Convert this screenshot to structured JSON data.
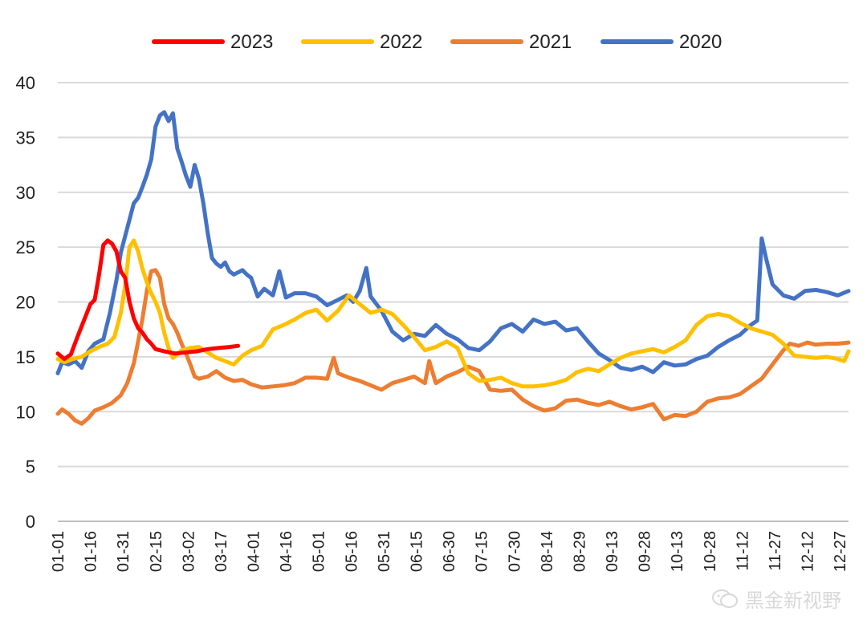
{
  "chart_data": {
    "type": "line",
    "title": "",
    "xlabel": "",
    "ylabel": "",
    "ylim": [
      0,
      40
    ],
    "yticks": [
      0,
      5,
      10,
      15,
      20,
      25,
      30,
      35,
      40
    ],
    "grid": "horizontal",
    "legend_position": "top",
    "x_ticks": [
      "01-01",
      "01-16",
      "01-31",
      "02-15",
      "03-02",
      "03-17",
      "04-01",
      "04-16",
      "05-01",
      "05-16",
      "05-31",
      "06-15",
      "06-30",
      "07-15",
      "07-30",
      "08-14",
      "08-29",
      "09-13",
      "09-28",
      "10-13",
      "10-28",
      "11-12",
      "11-27",
      "12-12",
      "12-27"
    ],
    "x_unit": "day_of_year",
    "series": [
      {
        "name": "2023",
        "color": "#ff0000",
        "points": [
          [
            1,
            15.3
          ],
          [
            4,
            14.8
          ],
          [
            7,
            15.2
          ],
          [
            10,
            16.8
          ],
          [
            13,
            18.3
          ],
          [
            16,
            19.8
          ],
          [
            18,
            20.2
          ],
          [
            20,
            22.5
          ],
          [
            22,
            25.2
          ],
          [
            24,
            25.6
          ],
          [
            26,
            25.3
          ],
          [
            28,
            24.6
          ],
          [
            30,
            22.8
          ],
          [
            32,
            22.2
          ],
          [
            34,
            20.0
          ],
          [
            36,
            18.5
          ],
          [
            38,
            17.6
          ],
          [
            40,
            17.2
          ],
          [
            42,
            16.6
          ],
          [
            44,
            16.2
          ],
          [
            46,
            15.7
          ],
          [
            48,
            15.6
          ],
          [
            50,
            15.5
          ],
          [
            55,
            15.3
          ],
          [
            60,
            15.4
          ],
          [
            65,
            15.5
          ],
          [
            70,
            15.7
          ],
          [
            75,
            15.8
          ],
          [
            80,
            15.9
          ],
          [
            84,
            16.0
          ]
        ]
      },
      {
        "name": "2022",
        "color": "#ffc000",
        "points": [
          [
            1,
            14.8
          ],
          [
            4,
            14.5
          ],
          [
            8,
            14.8
          ],
          [
            12,
            15.0
          ],
          [
            16,
            15.5
          ],
          [
            20,
            15.9
          ],
          [
            24,
            16.2
          ],
          [
            27,
            16.8
          ],
          [
            30,
            19.0
          ],
          [
            32,
            21.5
          ],
          [
            34,
            25.0
          ],
          [
            36,
            25.6
          ],
          [
            38,
            24.6
          ],
          [
            40,
            23.0
          ],
          [
            42,
            21.8
          ],
          [
            44,
            20.8
          ],
          [
            46,
            20.0
          ],
          [
            48,
            19.0
          ],
          [
            50,
            17.2
          ],
          [
            52,
            15.8
          ],
          [
            54,
            14.9
          ],
          [
            56,
            15.2
          ],
          [
            58,
            15.6
          ],
          [
            62,
            15.8
          ],
          [
            66,
            15.9
          ],
          [
            70,
            15.4
          ],
          [
            74,
            14.9
          ],
          [
            78,
            14.6
          ],
          [
            82,
            14.3
          ],
          [
            86,
            15.1
          ],
          [
            90,
            15.6
          ],
          [
            95,
            16.0
          ],
          [
            100,
            17.5
          ],
          [
            105,
            17.9
          ],
          [
            110,
            18.4
          ],
          [
            115,
            19.0
          ],
          [
            120,
            19.3
          ],
          [
            125,
            18.3
          ],
          [
            130,
            19.2
          ],
          [
            135,
            20.6
          ],
          [
            140,
            19.8
          ],
          [
            145,
            19.0
          ],
          [
            150,
            19.3
          ],
          [
            155,
            18.9
          ],
          [
            160,
            17.9
          ],
          [
            165,
            16.8
          ],
          [
            170,
            15.6
          ],
          [
            175,
            15.9
          ],
          [
            180,
            16.4
          ],
          [
            185,
            15.8
          ],
          [
            190,
            13.5
          ],
          [
            195,
            12.8
          ],
          [
            200,
            12.9
          ],
          [
            205,
            13.1
          ],
          [
            210,
            12.6
          ],
          [
            215,
            12.3
          ],
          [
            220,
            12.3
          ],
          [
            225,
            12.4
          ],
          [
            230,
            12.6
          ],
          [
            235,
            12.9
          ],
          [
            240,
            13.6
          ],
          [
            245,
            13.9
          ],
          [
            250,
            13.7
          ],
          [
            255,
            14.3
          ],
          [
            260,
            14.9
          ],
          [
            265,
            15.3
          ],
          [
            270,
            15.5
          ],
          [
            275,
            15.7
          ],
          [
            280,
            15.4
          ],
          [
            285,
            15.9
          ],
          [
            290,
            16.5
          ],
          [
            295,
            17.9
          ],
          [
            300,
            18.7
          ],
          [
            305,
            18.9
          ],
          [
            310,
            18.7
          ],
          [
            315,
            18.1
          ],
          [
            320,
            17.6
          ],
          [
            325,
            17.3
          ],
          [
            330,
            17.0
          ],
          [
            335,
            16.2
          ],
          [
            340,
            15.1
          ],
          [
            345,
            15.0
          ],
          [
            350,
            14.9
          ],
          [
            355,
            15.0
          ],
          [
            360,
            14.8
          ],
          [
            363,
            14.6
          ],
          [
            365,
            15.5
          ]
        ]
      },
      {
        "name": "2021",
        "color": "#ed7d31",
        "points": [
          [
            1,
            9.8
          ],
          [
            3,
            10.2
          ],
          [
            6,
            9.8
          ],
          [
            9,
            9.2
          ],
          [
            12,
            8.9
          ],
          [
            15,
            9.4
          ],
          [
            18,
            10.1
          ],
          [
            22,
            10.4
          ],
          [
            26,
            10.8
          ],
          [
            30,
            11.5
          ],
          [
            33,
            12.6
          ],
          [
            36,
            14.4
          ],
          [
            38,
            16.4
          ],
          [
            40,
            18.5
          ],
          [
            42,
            21.0
          ],
          [
            44,
            22.8
          ],
          [
            46,
            22.9
          ],
          [
            48,
            22.2
          ],
          [
            50,
            19.8
          ],
          [
            52,
            18.5
          ],
          [
            54,
            18.0
          ],
          [
            56,
            17.2
          ],
          [
            58,
            16.2
          ],
          [
            60,
            15.3
          ],
          [
            62,
            14.3
          ],
          [
            64,
            13.2
          ],
          [
            66,
            13.0
          ],
          [
            70,
            13.2
          ],
          [
            74,
            13.7
          ],
          [
            78,
            13.1
          ],
          [
            82,
            12.8
          ],
          [
            86,
            12.9
          ],
          [
            90,
            12.5
          ],
          [
            95,
            12.2
          ],
          [
            100,
            12.3
          ],
          [
            105,
            12.4
          ],
          [
            110,
            12.6
          ],
          [
            115,
            13.1
          ],
          [
            120,
            13.1
          ],
          [
            125,
            13.0
          ],
          [
            128,
            14.9
          ],
          [
            130,
            13.5
          ],
          [
            135,
            13.1
          ],
          [
            140,
            12.8
          ],
          [
            145,
            12.4
          ],
          [
            150,
            12.0
          ],
          [
            155,
            12.6
          ],
          [
            160,
            12.9
          ],
          [
            165,
            13.2
          ],
          [
            170,
            12.6
          ],
          [
            172,
            14.6
          ],
          [
            175,
            12.6
          ],
          [
            180,
            13.2
          ],
          [
            185,
            13.6
          ],
          [
            190,
            14.1
          ],
          [
            195,
            13.7
          ],
          [
            200,
            12.0
          ],
          [
            205,
            11.9
          ],
          [
            210,
            12.0
          ],
          [
            215,
            11.1
          ],
          [
            220,
            10.5
          ],
          [
            225,
            10.1
          ],
          [
            230,
            10.3
          ],
          [
            235,
            11.0
          ],
          [
            240,
            11.1
          ],
          [
            245,
            10.8
          ],
          [
            250,
            10.6
          ],
          [
            255,
            10.9
          ],
          [
            260,
            10.5
          ],
          [
            265,
            10.2
          ],
          [
            270,
            10.4
          ],
          [
            275,
            10.7
          ],
          [
            280,
            9.3
          ],
          [
            285,
            9.7
          ],
          [
            290,
            9.6
          ],
          [
            295,
            10.0
          ],
          [
            300,
            10.9
          ],
          [
            305,
            11.2
          ],
          [
            310,
            11.3
          ],
          [
            315,
            11.6
          ],
          [
            320,
            12.3
          ],
          [
            325,
            13.0
          ],
          [
            330,
            14.3
          ],
          [
            335,
            15.6
          ],
          [
            338,
            16.2
          ],
          [
            342,
            16.0
          ],
          [
            346,
            16.3
          ],
          [
            350,
            16.1
          ],
          [
            355,
            16.2
          ],
          [
            360,
            16.2
          ],
          [
            365,
            16.3
          ]
        ]
      },
      {
        "name": "2020",
        "color": "#4472c4",
        "points": [
          [
            1,
            13.5
          ],
          [
            3,
            14.5
          ],
          [
            6,
            14.3
          ],
          [
            9,
            14.6
          ],
          [
            12,
            14.0
          ],
          [
            15,
            15.5
          ],
          [
            18,
            16.2
          ],
          [
            22,
            16.6
          ],
          [
            25,
            19.0
          ],
          [
            28,
            22.0
          ],
          [
            30,
            24.5
          ],
          [
            32,
            26.0
          ],
          [
            34,
            27.5
          ],
          [
            36,
            29.0
          ],
          [
            38,
            29.5
          ],
          [
            40,
            30.5
          ],
          [
            42,
            31.6
          ],
          [
            44,
            33.0
          ],
          [
            46,
            36.0
          ],
          [
            48,
            37.0
          ],
          [
            50,
            37.3
          ],
          [
            52,
            36.5
          ],
          [
            54,
            37.2
          ],
          [
            56,
            34.0
          ],
          [
            58,
            32.8
          ],
          [
            60,
            31.5
          ],
          [
            62,
            30.5
          ],
          [
            64,
            32.5
          ],
          [
            66,
            31.2
          ],
          [
            68,
            29.0
          ],
          [
            70,
            26.3
          ],
          [
            72,
            24.0
          ],
          [
            74,
            23.5
          ],
          [
            76,
            23.2
          ],
          [
            78,
            23.6
          ],
          [
            80,
            22.8
          ],
          [
            82,
            22.5
          ],
          [
            84,
            22.7
          ],
          [
            86,
            22.9
          ],
          [
            88,
            22.5
          ],
          [
            90,
            22.2
          ],
          [
            93,
            20.5
          ],
          [
            96,
            21.2
          ],
          [
            100,
            20.6
          ],
          [
            103,
            22.8
          ],
          [
            106,
            20.4
          ],
          [
            110,
            20.8
          ],
          [
            115,
            20.8
          ],
          [
            120,
            20.5
          ],
          [
            125,
            19.7
          ],
          [
            130,
            20.2
          ],
          [
            134,
            20.6
          ],
          [
            137,
            20.0
          ],
          [
            140,
            21.0
          ],
          [
            143,
            23.1
          ],
          [
            145,
            20.5
          ],
          [
            150,
            19.2
          ],
          [
            155,
            17.3
          ],
          [
            160,
            16.5
          ],
          [
            165,
            17.1
          ],
          [
            170,
            16.9
          ],
          [
            175,
            17.9
          ],
          [
            180,
            17.1
          ],
          [
            185,
            16.6
          ],
          [
            190,
            15.8
          ],
          [
            195,
            15.6
          ],
          [
            200,
            16.4
          ],
          [
            205,
            17.6
          ],
          [
            210,
            18.0
          ],
          [
            215,
            17.3
          ],
          [
            220,
            18.4
          ],
          [
            225,
            18.0
          ],
          [
            230,
            18.2
          ],
          [
            235,
            17.4
          ],
          [
            240,
            17.6
          ],
          [
            245,
            16.4
          ],
          [
            250,
            15.3
          ],
          [
            255,
            14.7
          ],
          [
            260,
            14.0
          ],
          [
            265,
            13.8
          ],
          [
            270,
            14.1
          ],
          [
            275,
            13.6
          ],
          [
            280,
            14.5
          ],
          [
            285,
            14.2
          ],
          [
            290,
            14.3
          ],
          [
            295,
            14.8
          ],
          [
            300,
            15.1
          ],
          [
            305,
            15.9
          ],
          [
            310,
            16.5
          ],
          [
            315,
            17.0
          ],
          [
            320,
            17.9
          ],
          [
            323,
            18.3
          ],
          [
            325,
            25.8
          ],
          [
            327,
            24.0
          ],
          [
            330,
            21.6
          ],
          [
            335,
            20.6
          ],
          [
            340,
            20.3
          ],
          [
            345,
            21.0
          ],
          [
            350,
            21.1
          ],
          [
            355,
            20.9
          ],
          [
            360,
            20.6
          ],
          [
            365,
            21.0
          ]
        ]
      }
    ]
  },
  "watermark": {
    "text": "黑金新视野",
    "icon": "wechat-icon"
  }
}
